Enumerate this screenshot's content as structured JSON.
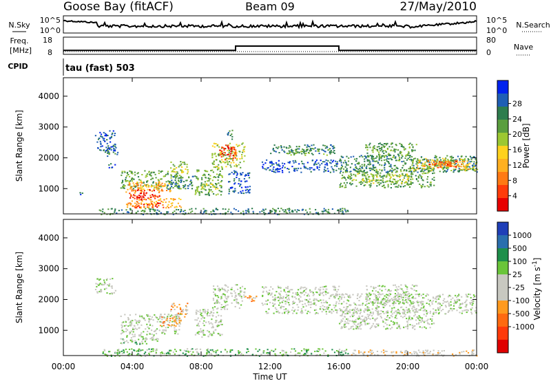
{
  "header": {
    "station": "Goose Bay (fitACF)",
    "beam": "Beam 09",
    "date": "27/May/2010"
  },
  "chart_data": [
    {
      "type": "line",
      "panel": "noise",
      "left_label": "N.Sky",
      "right_label": "N.Search",
      "left_ticks": [
        "10^5",
        "10^0"
      ],
      "right_ticks": [
        "10^5",
        "10^0"
      ],
      "x_range_hours": [
        0,
        24
      ],
      "series_color": "#000000"
    },
    {
      "type": "line",
      "panel": "frequency",
      "left_label_top": "Freq.",
      "left_label_bottom": "[MHz]",
      "right_label": "Nave",
      "left_ticks": [
        "18",
        "8"
      ],
      "right_ticks": [
        "80",
        "0"
      ],
      "ylim": [
        8,
        18
      ],
      "freq_series": {
        "x": [
          0,
          10,
          10,
          16,
          16,
          24
        ],
        "y": [
          10.3,
          10.3,
          12.8,
          12.8,
          10.3,
          10.3
        ]
      }
    },
    {
      "panel": "cpid",
      "label": "CPID",
      "text": "tau (fast) 503"
    },
    {
      "type": "heatmap",
      "panel": "power",
      "ylabel": "Slant Range [km]",
      "yticks": [
        "1000",
        "2000",
        "3000",
        "4000"
      ],
      "ylim": [
        180,
        4600
      ],
      "colorbar": {
        "label": "Power [dB]",
        "ticks": [
          "4",
          "8",
          "12",
          "16",
          "20",
          "24",
          "28"
        ],
        "colors": [
          "#0022ee",
          "#1f5fb5",
          "#2e7d4e",
          "#5a9e3e",
          "#9cc832",
          "#ffd21e",
          "#ffb020",
          "#ff7a14",
          "#ff3c0a",
          "#e80000"
        ]
      },
      "regions": [
        {
          "t0": 0.9,
          "t1": 1.1,
          "r0": 800,
          "r1": 1000,
          "v": 1
        },
        {
          "t0": 1.8,
          "t1": 3.0,
          "r0": 2200,
          "r1": 2900,
          "v": 1
        },
        {
          "t0": 2.5,
          "t1": 3.2,
          "r0": 2050,
          "r1": 2350,
          "v": 2
        },
        {
          "t0": 2.6,
          "t1": 3.0,
          "r0": 1650,
          "r1": 1850,
          "v": 1
        },
        {
          "t0": 3.3,
          "t1": 6.8,
          "r0": 1000,
          "r1": 1600,
          "v": 3
        },
        {
          "t0": 3.6,
          "t1": 6.2,
          "r0": 880,
          "r1": 1250,
          "v": 6
        },
        {
          "t0": 3.8,
          "t1": 5.6,
          "r0": 700,
          "r1": 1000,
          "v": 8
        },
        {
          "t0": 4.2,
          "t1": 5.2,
          "r0": 650,
          "r1": 900,
          "v": 9
        },
        {
          "t0": 3.6,
          "t1": 6.8,
          "r0": 380,
          "r1": 700,
          "v": 6
        },
        {
          "t0": 4.0,
          "t1": 5.8,
          "r0": 380,
          "r1": 560,
          "v": 8
        },
        {
          "t0": 6.2,
          "t1": 7.2,
          "r0": 1450,
          "r1": 1900,
          "v": 4
        },
        {
          "t0": 6.0,
          "t1": 7.5,
          "r0": 1000,
          "r1": 1450,
          "v": 2
        },
        {
          "t0": 7.6,
          "t1": 9.2,
          "r0": 800,
          "r1": 1700,
          "v": 3
        },
        {
          "t0": 8.0,
          "t1": 9.0,
          "r0": 1000,
          "r1": 1200,
          "v": 4
        },
        {
          "t0": 8.6,
          "t1": 10.5,
          "r0": 1700,
          "r1": 2500,
          "v": 4
        },
        {
          "t0": 9.0,
          "t1": 10.0,
          "r0": 1900,
          "r1": 2450,
          "v": 8
        },
        {
          "t0": 9.4,
          "t1": 9.8,
          "r0": 2200,
          "r1": 2400,
          "v": 9
        },
        {
          "t0": 9.5,
          "t1": 10.8,
          "r0": 850,
          "r1": 1600,
          "v": 1
        },
        {
          "t0": 9.5,
          "t1": 9.8,
          "r0": 2600,
          "r1": 3000,
          "v": 2
        },
        {
          "t0": 12.0,
          "t1": 15.8,
          "r0": 2150,
          "r1": 2450,
          "v": 2
        },
        {
          "t0": 11.5,
          "t1": 16.0,
          "r0": 1550,
          "r1": 1950,
          "v": 1
        },
        {
          "t0": 13.0,
          "t1": 15.5,
          "r0": 2100,
          "r1": 2300,
          "v": 3
        },
        {
          "t0": 16.0,
          "t1": 21.5,
          "r0": 1050,
          "r1": 1700,
          "v": 3
        },
        {
          "t0": 16.8,
          "t1": 20.2,
          "r0": 1200,
          "r1": 1500,
          "v": 4
        },
        {
          "t0": 16.0,
          "t1": 24.0,
          "r0": 1550,
          "r1": 2100,
          "v": 2
        },
        {
          "t0": 17.5,
          "t1": 20.5,
          "r0": 1900,
          "r1": 2500,
          "v": 3
        },
        {
          "t0": 20.0,
          "t1": 24.0,
          "r0": 1600,
          "r1": 2000,
          "v": 4
        },
        {
          "t0": 20.5,
          "t1": 23.5,
          "r0": 1650,
          "r1": 1950,
          "v": 6
        },
        {
          "t0": 21.2,
          "t1": 22.8,
          "r0": 1700,
          "r1": 1900,
          "v": 8
        },
        {
          "t0": 2.0,
          "t1": 16.5,
          "r0": 180,
          "r1": 380,
          "v": 2
        }
      ]
    },
    {
      "type": "heatmap",
      "panel": "velocity",
      "ylabel": "Slant Range [km]",
      "yticks": [
        "1000",
        "2000",
        "3000",
        "4000"
      ],
      "ylim": [
        180,
        4600
      ],
      "xlabel": "Time UT",
      "xticks": [
        "00:00",
        "04:00",
        "08:00",
        "12:00",
        "16:00",
        "20:00",
        "00:00"
      ],
      "colorbar": {
        "label": "Velocity [m s",
        "label_sup": "-1",
        "label_end": "]",
        "ticks": [
          "1000",
          "500",
          "100",
          "25",
          "-25",
          "-100",
          "-500",
          "-1000"
        ],
        "colors": [
          "#1f3fb8",
          "#2a6fae",
          "#1e8f4a",
          "#6ac53a",
          "#c8c8c0",
          "#c8c8c0",
          "#ff9a1e",
          "#ff6a10",
          "#ff3a0a",
          "#e00000"
        ]
      },
      "regions": [
        {
          "t0": 1.8,
          "t1": 3.0,
          "r0": 2200,
          "r1": 2700,
          "v": 4
        },
        {
          "t0": 3.3,
          "t1": 6.8,
          "r0": 900,
          "r1": 1550,
          "v": 4
        },
        {
          "t0": 3.6,
          "t1": 5.5,
          "r0": 650,
          "r1": 900,
          "v": 4
        },
        {
          "t0": 3.3,
          "t1": 4.8,
          "r0": 550,
          "r1": 750,
          "v": 3
        },
        {
          "t0": 6.2,
          "t1": 7.2,
          "r0": 1450,
          "r1": 1900,
          "v": 6
        },
        {
          "t0": 5.5,
          "t1": 6.8,
          "r0": 1150,
          "r1": 1450,
          "v": 6
        },
        {
          "t0": 7.6,
          "t1": 9.2,
          "r0": 800,
          "r1": 1700,
          "v": 4
        },
        {
          "t0": 8.6,
          "t1": 10.5,
          "r0": 1700,
          "r1": 2500,
          "v": 4
        },
        {
          "t0": 10.5,
          "t1": 11.2,
          "r0": 1900,
          "r1": 2150,
          "v": 6
        },
        {
          "t0": 11.5,
          "t1": 16.0,
          "r0": 1550,
          "r1": 2450,
          "v": 4
        },
        {
          "t0": 16.0,
          "t1": 21.5,
          "r0": 1050,
          "r1": 1700,
          "v": 4
        },
        {
          "t0": 16.0,
          "t1": 24.0,
          "r0": 1550,
          "r1": 2200,
          "v": 4
        },
        {
          "t0": 17.5,
          "t1": 20.5,
          "r0": 1900,
          "r1": 2500,
          "v": 4
        },
        {
          "t0": 2.0,
          "t1": 16.5,
          "r0": 180,
          "r1": 420,
          "v": 3
        },
        {
          "t0": 16.5,
          "t1": 24.0,
          "r0": 180,
          "r1": 380,
          "v": 5
        }
      ]
    }
  ]
}
